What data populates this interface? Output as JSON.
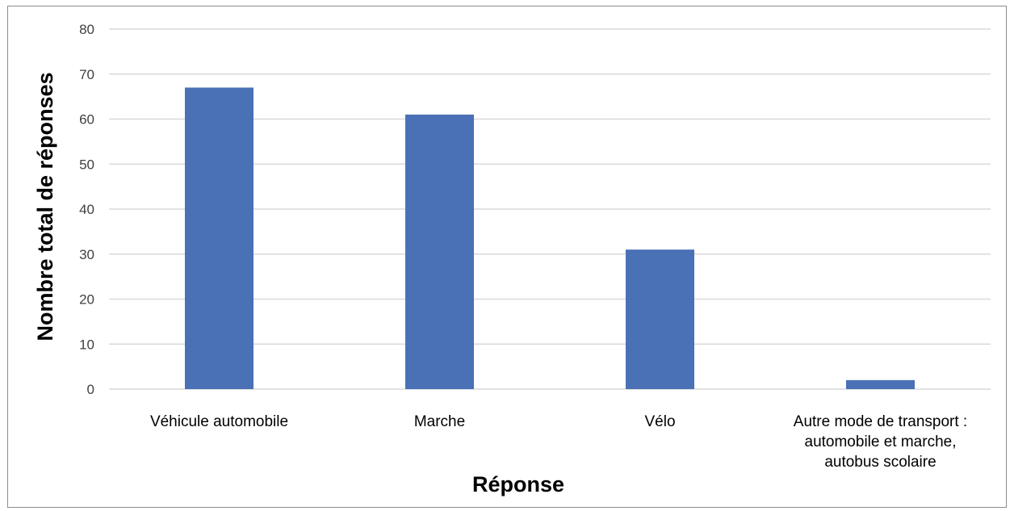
{
  "chart_data": {
    "type": "bar",
    "title": "",
    "xlabel": "Réponse",
    "ylabel": "Nombre total de réponses",
    "categories": [
      [
        "Véhicule automobile"
      ],
      [
        "Marche"
      ],
      [
        "Vélo"
      ],
      [
        "Autre mode de transport :",
        "automobile et marche,",
        "autobus scolaire"
      ]
    ],
    "values": [
      67,
      61,
      31,
      2
    ],
    "ylim": [
      0,
      80
    ],
    "yticks": [
      0,
      10,
      20,
      30,
      40,
      50,
      60,
      70,
      80
    ],
    "grid": true,
    "bar_color": "#4a71b5",
    "grid_color": "#d9d9d9"
  }
}
